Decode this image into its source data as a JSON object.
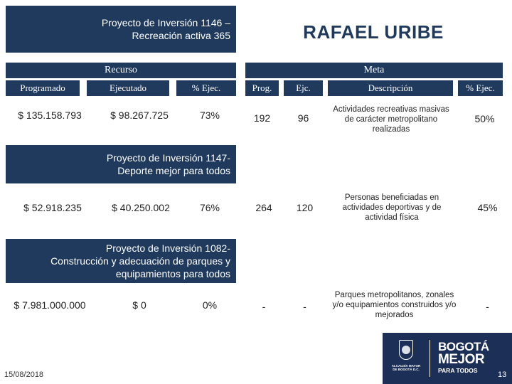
{
  "header": {
    "project_1146": "Proyecto de Inversión 1146 –\nRecreación activa 365",
    "locality": "RAFAEL URIBE"
  },
  "sections": {
    "resource": "Recurso",
    "goal": "Meta"
  },
  "columns": {
    "programmed": "Programado",
    "executed": "Ejecutado",
    "pct_exec": "% Ejec.",
    "prog": "Prog.",
    "ejc": "Ejc.",
    "description": "Descripción",
    "goal_pct_exec": "% Ejec."
  },
  "rows": [
    {
      "programmed": "$ 135.158.793",
      "executed": "$ 98.267.725",
      "pct_exec": "73%",
      "prog": "192",
      "ejc": "96",
      "description": [
        "Actividades recreativas masivas",
        "de carácter metropolitano",
        "realizadas"
      ],
      "goal_pct_exec": "50%"
    },
    {
      "project_title": "Proyecto de Inversión 1147-\nDeporte mejor para todos",
      "programmed": "$ 52.918.235",
      "executed": "$ 40.250.002",
      "pct_exec": "76%",
      "prog": "264",
      "ejc": "120",
      "description": [
        "Personas beneficiadas en",
        "actividades deportivas y de",
        "actividad física"
      ],
      "goal_pct_exec": "45%"
    },
    {
      "project_title": "Proyecto de Inversión 1082-\nConstrucción y adecuación de parques y\nequipamientos para todos",
      "programmed": "$ 7.981.000.000",
      "executed": "$ 0",
      "pct_exec": "0%",
      "prog": "-",
      "ejc": "-",
      "description": [
        "Parques metropolitanos, zonales",
        "y/o equipamientos construidos y/o",
        "mejorados"
      ],
      "goal_pct_exec": "-"
    }
  ],
  "footer": {
    "date": "15/08/2018",
    "page_number": "13",
    "logo_mayor_text": "ALCALDÍA MAYOR\nDE BOGOTÁ D.C.",
    "logo_bogota_line1": "BOGOTÁ",
    "logo_bogota_line2": "MEJOR",
    "logo_bogota_line3": "PARA TODOS"
  },
  "colors": {
    "navy": "#1f3a5c",
    "logo_blue": "#1c2f56",
    "text": "#222222"
  }
}
